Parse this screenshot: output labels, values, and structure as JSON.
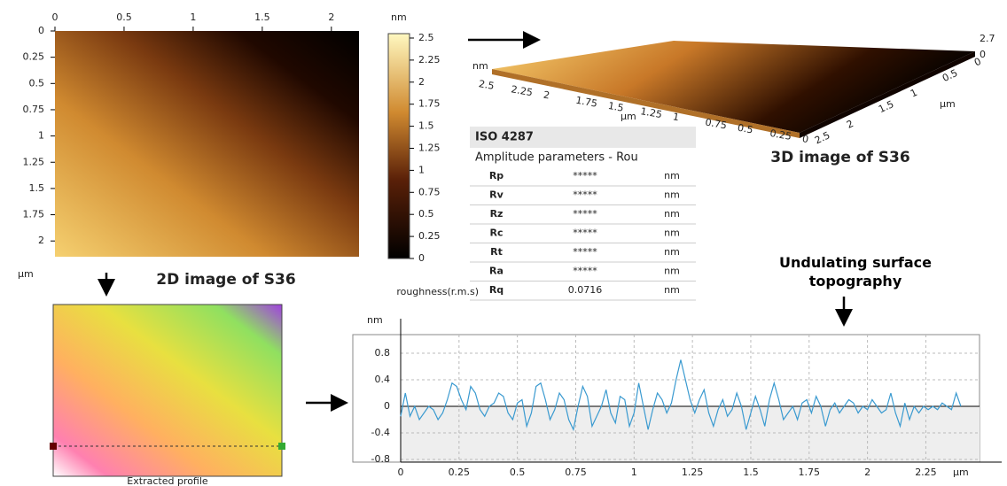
{
  "afm_2d": {
    "xticks": [
      0,
      0.5,
      1,
      1.5,
      2
    ],
    "x_unit": "µm",
    "xlim": [
      0,
      2.2
    ],
    "yticks": [
      0,
      0.25,
      0.5,
      0.75,
      1,
      1.25,
      1.5,
      1.75,
      2
    ],
    "ylim": [
      0,
      2.15
    ],
    "caption": "2D image of S36"
  },
  "colorbar": {
    "unit": "nm",
    "ticks": [
      0,
      0.25,
      0.5,
      0.75,
      1,
      1.25,
      1.5,
      1.75,
      2,
      2.25,
      2.5
    ],
    "lim": [
      0,
      2.55
    ]
  },
  "afm_3d": {
    "z_max": 2.7,
    "z_min": 0,
    "z_unit": "nm",
    "x_ticks": [
      2.5,
      2.25,
      2,
      1.75,
      1.5,
      1.25,
      1,
      0.75,
      0.5,
      0.25,
      0
    ],
    "x_unit": "µm",
    "y_ticks": [
      0,
      0.5,
      1,
      1.5,
      2,
      2.5
    ],
    "y_unit": "µm",
    "caption": "3D image of S36"
  },
  "table": {
    "title": "ISO 4287",
    "subtitle": "Amplitude parameters - Rou",
    "row_note": "roughness(r.m.s)",
    "rows": [
      [
        "Rp",
        "*****",
        "nm"
      ],
      [
        "Rv",
        "*****",
        "nm"
      ],
      [
        "Rz",
        "*****",
        "nm"
      ],
      [
        "Rc",
        "*****",
        "nm"
      ],
      [
        "Rt",
        "*****",
        "nm"
      ],
      [
        "Ra",
        "*****",
        "nm"
      ],
      [
        "Rq",
        "0.0716",
        "nm"
      ]
    ]
  },
  "extracted_profile": {
    "caption": "Extracted profile"
  },
  "annotation": "Undulating surface topography",
  "chart_data": {
    "type": "line",
    "color": "#3a9ad0",
    "y_unit": "nm",
    "x_unit": "µm",
    "grid": true,
    "xlim": [
      0,
      2.48
    ],
    "ylim": [
      -0.84,
      1.08
    ],
    "xticks": [
      0,
      0.25,
      0.5,
      0.75,
      1,
      1.25,
      1.5,
      1.75,
      2,
      2.25
    ],
    "yticks": [
      -0.8,
      -0.4,
      0,
      0.4,
      0.8
    ],
    "x": [
      0,
      0.02,
      0.04,
      0.06,
      0.08,
      0.1,
      0.12,
      0.14,
      0.16,
      0.18,
      0.2,
      0.22,
      0.24,
      0.26,
      0.28,
      0.3,
      0.32,
      0.34,
      0.36,
      0.38,
      0.4,
      0.42,
      0.44,
      0.46,
      0.48,
      0.5,
      0.52,
      0.54,
      0.56,
      0.58,
      0.6,
      0.62,
      0.64,
      0.66,
      0.68,
      0.7,
      0.72,
      0.74,
      0.76,
      0.78,
      0.8,
      0.82,
      0.84,
      0.86,
      0.88,
      0.9,
      0.92,
      0.94,
      0.96,
      0.98,
      1,
      1.02,
      1.04,
      1.06,
      1.08,
      1.1,
      1.12,
      1.14,
      1.16,
      1.18,
      1.2,
      1.22,
      1.24,
      1.26,
      1.28,
      1.3,
      1.32,
      1.34,
      1.36,
      1.38,
      1.4,
      1.42,
      1.44,
      1.46,
      1.48,
      1.5,
      1.52,
      1.54,
      1.56,
      1.58,
      1.6,
      1.62,
      1.64,
      1.66,
      1.68,
      1.7,
      1.72,
      1.74,
      1.76,
      1.78,
      1.8,
      1.82,
      1.84,
      1.86,
      1.88,
      1.9,
      1.92,
      1.94,
      1.96,
      1.98,
      2,
      2.02,
      2.04,
      2.06,
      2.08,
      2.1,
      2.12,
      2.14,
      2.16,
      2.18,
      2.2,
      2.22,
      2.24,
      2.26,
      2.28,
      2.3,
      2.32,
      2.34,
      2.36,
      2.38,
      2.4
    ],
    "values": [
      -0.15,
      0.2,
      -0.15,
      0,
      -0.2,
      -0.1,
      0,
      -0.05,
      -0.2,
      -0.1,
      0.1,
      0.35,
      0.3,
      0.1,
      -0.05,
      0.3,
      0.2,
      -0.05,
      -0.15,
      0,
      0.05,
      0.2,
      0.15,
      -0.1,
      -0.2,
      0.05,
      0.1,
      -0.3,
      -0.1,
      0.3,
      0.35,
      0.1,
      -0.2,
      -0.05,
      0.2,
      0.1,
      -0.2,
      -0.35,
      0,
      0.3,
      0.15,
      -0.3,
      -0.15,
      0,
      0.25,
      -0.1,
      -0.25,
      0.15,
      0.1,
      -0.3,
      -0.1,
      0.35,
      0,
      -0.35,
      -0.05,
      0.2,
      0.1,
      -0.1,
      0.05,
      0.4,
      0.7,
      0.4,
      0.1,
      -0.1,
      0.1,
      0.25,
      -0.1,
      -0.3,
      -0.05,
      0.1,
      -0.15,
      -0.05,
      0.2,
      0,
      -0.35,
      -0.1,
      0.15,
      -0.05,
      -0.3,
      0.1,
      0.35,
      0.1,
      -0.2,
      -0.1,
      0,
      -0.2,
      0.05,
      0.1,
      -0.1,
      0.15,
      0,
      -0.3,
      -0.05,
      0.05,
      -0.1,
      0,
      0.1,
      0.05,
      -0.1,
      0,
      -0.05,
      0.1,
      0,
      -0.1,
      -0.05,
      0.2,
      -0.1,
      -0.3,
      0.05,
      -0.2,
      0,
      -0.1,
      0,
      -0.05,
      0,
      -0.05,
      0.05,
      0,
      -0.05,
      0.2,
      0
    ]
  }
}
